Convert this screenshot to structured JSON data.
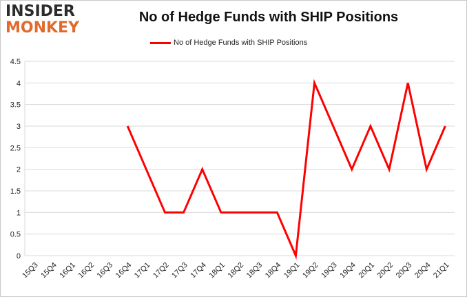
{
  "brand": {
    "line1": "INSIDER",
    "line2": "MONKEY"
  },
  "colors": {
    "series": "#ff0000",
    "grid": "#d9d9d9",
    "logo_dark": "#2b2b2b",
    "logo_accent": "#e06a2c"
  },
  "chart_data": {
    "type": "line",
    "title": "No of Hedge Funds with SHIP Positions",
    "xlabel": "",
    "ylabel": "",
    "ylim": [
      0,
      4.5
    ],
    "yticks": [
      "0",
      "0.5",
      "1",
      "1.5",
      "2",
      "2.5",
      "3",
      "3.5",
      "4",
      "4.5"
    ],
    "grid": true,
    "legend_position": "top-center",
    "categories": [
      "15Q3",
      "15Q4",
      "16Q1",
      "16Q2",
      "16Q3",
      "16Q4",
      "17Q1",
      "17Q2",
      "17Q3",
      "17Q4",
      "18Q1",
      "18Q2",
      "18Q3",
      "18Q4",
      "19Q1",
      "19Q2",
      "19Q3",
      "19Q4",
      "20Q1",
      "20Q2",
      "20Q3",
      "20Q4",
      "21Q1"
    ],
    "series": [
      {
        "name": "No of Hedge Funds with SHIP Positions",
        "values": [
          null,
          null,
          null,
          null,
          null,
          3,
          2,
          1,
          1,
          2,
          1,
          1,
          1,
          1,
          0,
          4,
          3,
          2,
          3,
          2,
          4,
          2,
          3
        ]
      }
    ]
  }
}
